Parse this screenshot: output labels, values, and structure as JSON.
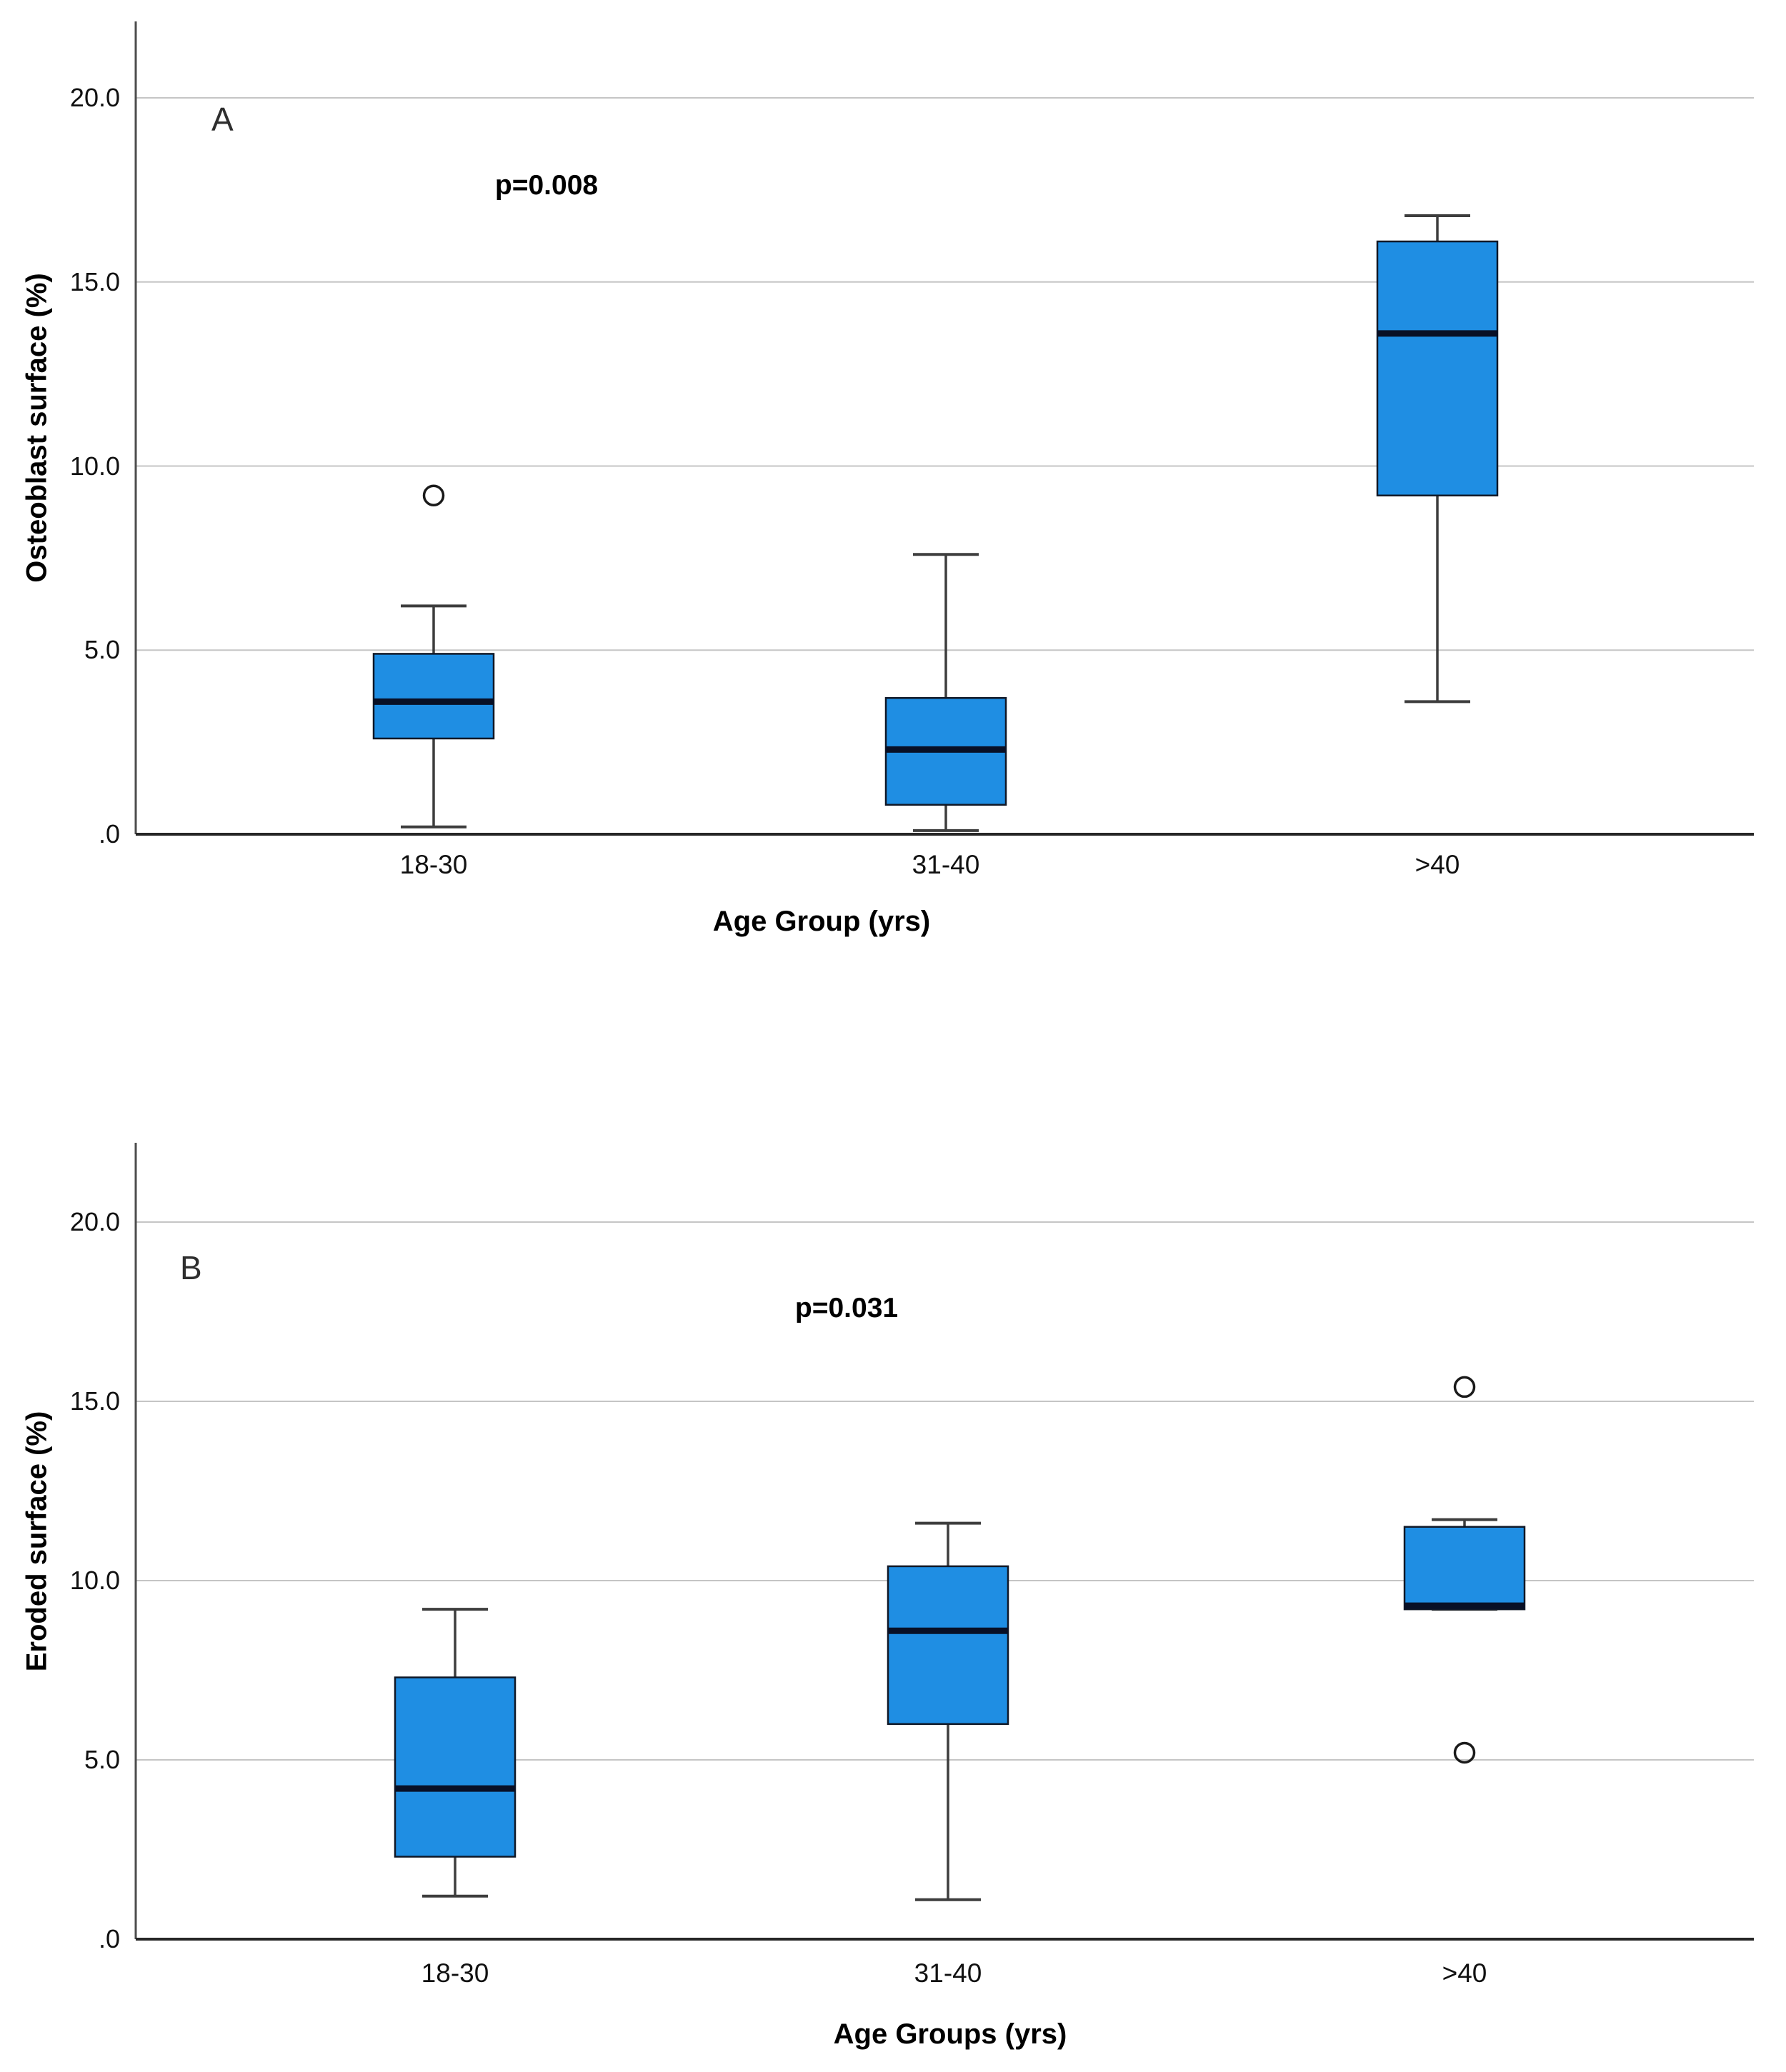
{
  "figure": {
    "background_color": "#ffffff",
    "description": "Two stacked SPSS-style box plots comparing bone histomorphometry measures across age groups"
  },
  "colors": {
    "box_fill": "#1f8ee3",
    "box_border": "#101827",
    "median_color": "#081026",
    "whisker_color": "#3d3d3d",
    "gridline_color": "#c5c5c5",
    "y_axis_color": "#4d4d4d",
    "x_axis_color": "#262626",
    "outlier_stroke": "#1a1a1a",
    "text_color": "#000000"
  },
  "chart_data": [
    {
      "type": "box",
      "panel_label": "A",
      "annotation": "p=0.008",
      "xlabel": "Age Group (yrs)",
      "ylabel": "Osteoblast surface (%)",
      "categories": [
        "18-30",
        "31-40",
        ">40"
      ],
      "ylim": [
        0,
        22
      ],
      "grid": "horizontal",
      "legend": "none",
      "y_axis_ticks": [
        {
          "label": "20.0",
          "value": 20
        },
        {
          "label": "15.0",
          "value": 15
        },
        {
          "label": "10.0",
          "value": 10
        },
        {
          "label": "5.0",
          "value": 5
        },
        {
          "label": ".0",
          "value": 0
        }
      ],
      "series": [
        {
          "category": "18-30",
          "min": 0.2,
          "q1": 2.6,
          "median": 3.6,
          "q3": 4.9,
          "max": 6.2,
          "outliers": [
            9.2
          ]
        },
        {
          "category": "31-40",
          "min": 0.1,
          "q1": 0.8,
          "median": 2.3,
          "q3": 3.7,
          "max": 7.6,
          "outliers": []
        },
        {
          "category": ">40",
          "min": 3.6,
          "q1": 9.2,
          "median": 13.6,
          "q3": 16.1,
          "max": 16.8,
          "outliers": []
        }
      ]
    },
    {
      "type": "box",
      "panel_label": "B",
      "annotation": "p=0.031",
      "xlabel": "Age Groups (yrs)",
      "ylabel": "Eroded surface (%)",
      "categories": [
        "18-30",
        "31-40",
        ">40"
      ],
      "ylim": [
        0,
        22
      ],
      "grid": "horizontal",
      "legend": "none",
      "y_axis_ticks": [
        {
          "label": "20.0",
          "value": 20
        },
        {
          "label": "15.0",
          "value": 15
        },
        {
          "label": "10.0",
          "value": 10
        },
        {
          "label": "5.0",
          "value": 5
        },
        {
          "label": ".0",
          "value": 0
        }
      ],
      "series": [
        {
          "category": "18-30",
          "min": 1.2,
          "q1": 2.3,
          "median": 4.2,
          "q3": 7.3,
          "max": 9.2,
          "outliers": []
        },
        {
          "category": "31-40",
          "min": 1.1,
          "q1": 6.0,
          "median": 8.6,
          "q3": 10.4,
          "max": 11.6,
          "outliers": []
        },
        {
          "category": ">40",
          "min": 9.2,
          "q1": 9.2,
          "median": 9.3,
          "q3": 11.5,
          "max": 11.7,
          "outliers": [
            15.4,
            5.2
          ]
        }
      ]
    }
  ]
}
